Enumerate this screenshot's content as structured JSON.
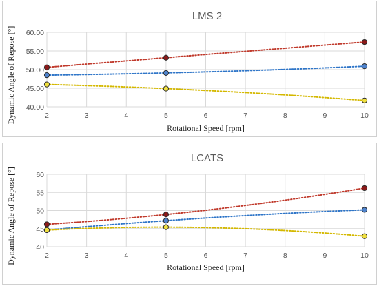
{
  "chart_data": [
    {
      "type": "scatter",
      "title": "LMS 2",
      "xlabel": "Rotational Speed [rpm]",
      "ylabel": "Dynamic Angle of Repose [°]",
      "xlim": [
        2,
        10
      ],
      "ylim": [
        40,
        60
      ],
      "xticks": [
        2,
        3,
        4,
        5,
        6,
        7,
        8,
        9,
        10
      ],
      "xtick_labels": [
        "2",
        "3",
        "4",
        "5",
        "6",
        "7",
        "8",
        "9",
        "10"
      ],
      "yticks": [
        40,
        45,
        50,
        55,
        60
      ],
      "ytick_labels": [
        "40.00",
        "45.00",
        "50.00",
        "55.00",
        "60.00"
      ],
      "grid": true,
      "series": [
        {
          "color": "#8b1a1a",
          "line_color": "#c0392b",
          "x": [
            2,
            5,
            10
          ],
          "y": [
            50.6,
            53.2,
            57.4
          ]
        },
        {
          "color": "#4f83cc",
          "line_color": "#2e75c8",
          "x": [
            2,
            5,
            10
          ],
          "y": [
            48.5,
            49.1,
            50.9
          ]
        },
        {
          "color": "#f0e040",
          "line_color": "#d4b800",
          "x": [
            2,
            5,
            10
          ],
          "y": [
            46.0,
            44.9,
            41.7
          ]
        }
      ]
    },
    {
      "type": "scatter",
      "title": "LCATS",
      "xlabel": "Rotational Speed [rpm]",
      "ylabel": "Dynamic Angle of Repose [°]",
      "xlim": [
        2,
        10
      ],
      "ylim": [
        40,
        60
      ],
      "xticks": [
        2,
        3,
        4,
        5,
        6,
        7,
        8,
        9,
        10
      ],
      "xtick_labels": [
        "2",
        "3",
        "4",
        "5",
        "6",
        "7",
        "8",
        "9",
        "10"
      ],
      "yticks": [
        40,
        45,
        50,
        55,
        60
      ],
      "ytick_labels": [
        "40",
        "45",
        "50",
        "55",
        "60"
      ],
      "grid": true,
      "series": [
        {
          "color": "#8b1a1a",
          "line_color": "#c0392b",
          "x": [
            2,
            5,
            10
          ],
          "y": [
            46.2,
            48.9,
            56.2
          ]
        },
        {
          "color": "#4f83cc",
          "line_color": "#2e75c8",
          "x": [
            2,
            5,
            10
          ],
          "y": [
            44.6,
            47.2,
            50.2
          ]
        },
        {
          "color": "#f0e040",
          "line_color": "#d4b800",
          "x": [
            2,
            5,
            10
          ],
          "y": [
            44.6,
            45.4,
            42.9
          ]
        }
      ]
    }
  ]
}
